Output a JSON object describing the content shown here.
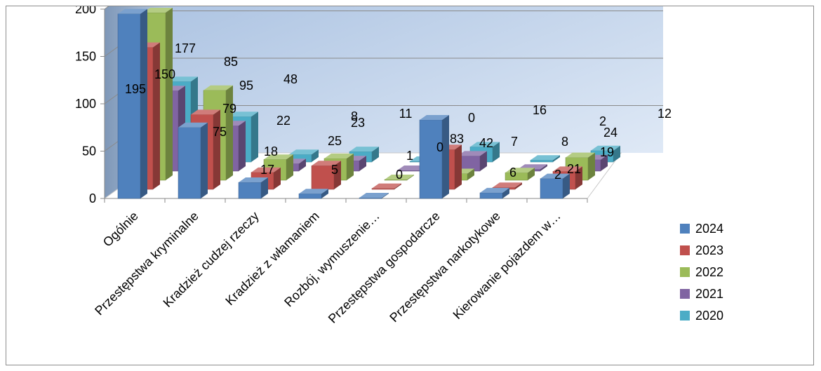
{
  "chart_data": {
    "type": "bar",
    "subtype": "3d-clustered-column",
    "categories": [
      "Ogólnie",
      "Przestępstwa kryminalne",
      "Kradzież cudzej rzeczy",
      "Kradzież z włamaniem",
      "Rozbój, wymuszenie…",
      "Przestępstwa gospodarcze",
      "Przestępstwa narkotykowe",
      "Kierowanie pojazdem w…"
    ],
    "series": [
      {
        "name": "2024",
        "color": "#4F81BD",
        "values": [
          195,
          75,
          17,
          5,
          0,
          83,
          6,
          21
        ]
      },
      {
        "name": "2023",
        "color": "#C0504D",
        "values": [
          150,
          79,
          18,
          25,
          1,
          42,
          2,
          19
        ]
      },
      {
        "name": "2022",
        "color": "#9BBB59",
        "values": [
          177,
          95,
          22,
          23,
          0,
          7,
          8,
          24
        ]
      },
      {
        "name": "2021",
        "color": "#8064A2",
        "values": [
          85,
          48,
          8,
          11,
          0,
          16,
          2,
          12
        ]
      },
      {
        "name": "2020",
        "color": "#4BACC6",
        "values": [
          85,
          48,
          8,
          11,
          0,
          16,
          2,
          12
        ]
      }
    ],
    "data_labels": [
      {
        "text": "195"
      },
      {
        "text": "150"
      },
      {
        "text": "177"
      },
      {
        "text": "85"
      },
      {
        "text": "95"
      },
      {
        "text": "48"
      },
      {
        "text": "79"
      },
      {
        "text": "75"
      },
      {
        "text": "22"
      },
      {
        "text": "8"
      },
      {
        "text": "23"
      },
      {
        "text": "11"
      },
      {
        "text": "0"
      },
      {
        "text": "18"
      },
      {
        "text": "17"
      },
      {
        "text": "25"
      },
      {
        "text": "5"
      },
      {
        "text": "1"
      },
      {
        "text": "0"
      },
      {
        "text": "0"
      },
      {
        "text": "83"
      },
      {
        "text": "42"
      },
      {
        "text": "7"
      },
      {
        "text": "16"
      },
      {
        "text": "8"
      },
      {
        "text": "2"
      },
      {
        "text": "6"
      },
      {
        "text": "2"
      },
      {
        "text": "24"
      },
      {
        "text": "19"
      },
      {
        "text": "12"
      },
      {
        "text": "21"
      }
    ],
    "y_ticks": [
      "0",
      "50",
      "100",
      "150",
      "200"
    ],
    "ylim": [
      0,
      200
    ],
    "grid": true,
    "legend": "right",
    "wall_color": "#B9CDE5",
    "title": "",
    "xlabel": "",
    "ylabel": ""
  }
}
